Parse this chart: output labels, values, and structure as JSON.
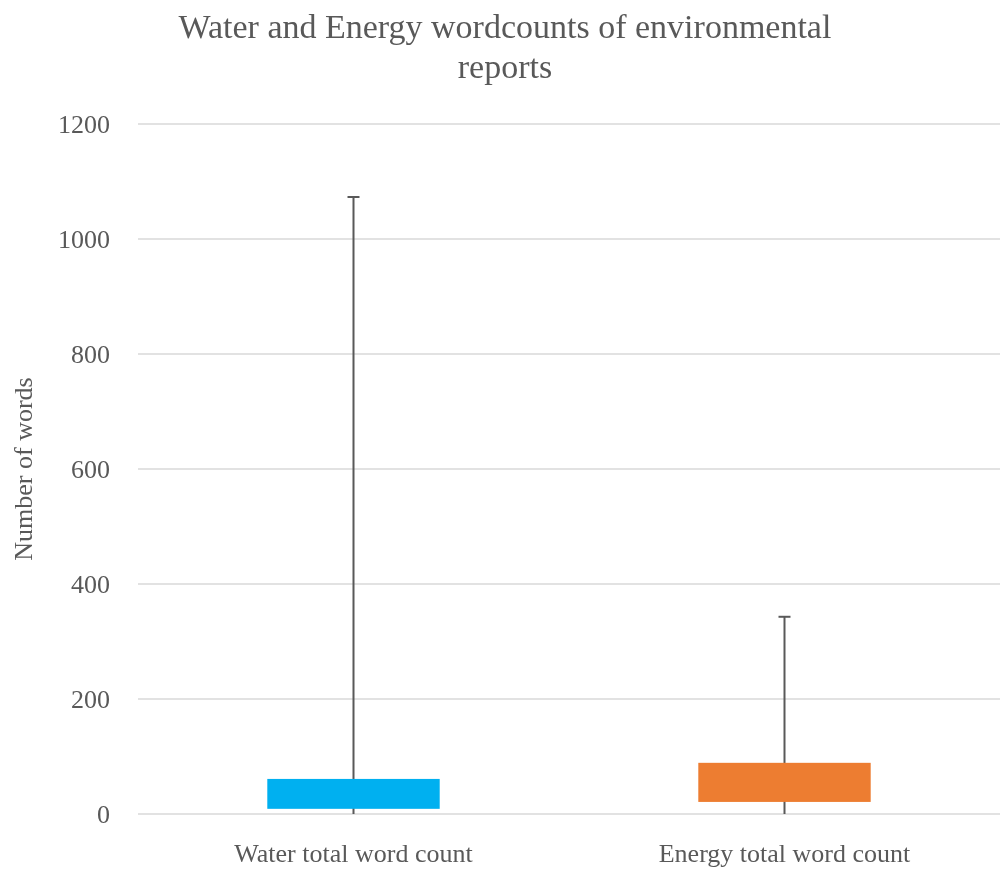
{
  "chart_data": {
    "type": "bar",
    "title": "Water and Energy wordcounts of environmental reports",
    "ylabel": "Number of words",
    "categories": [
      "Water total word count",
      "Energy total word count"
    ],
    "base": [
      9,
      21
    ],
    "values": [
      52,
      68
    ],
    "colors": [
      "#00b0f0",
      "#ed7d31"
    ],
    "errors": [
      [
        0,
        1073
      ],
      [
        0,
        343
      ]
    ],
    "ylim": [
      0,
      1200
    ],
    "yticks": [
      0,
      200,
      400,
      600,
      800,
      1000,
      1200
    ],
    "grid": "y"
  }
}
